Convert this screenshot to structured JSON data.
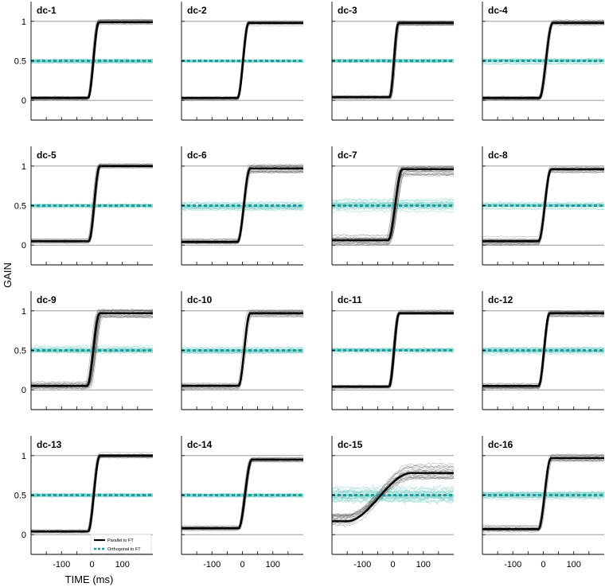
{
  "figure": {
    "ylabel": "GAIN",
    "xlabel": "TIME (ms)",
    "legend": {
      "parallel": "Parallel to FT",
      "orthogonal": "Orthogonal to FT"
    }
  },
  "chart_data": {
    "type": "line",
    "layout": "4x4 small multiples",
    "xlabel": "TIME (ms)",
    "ylabel": "GAIN",
    "xlim": [
      -200,
      200
    ],
    "ylim": [
      -0.25,
      1.25
    ],
    "xticks": [
      -100,
      0,
      100
    ],
    "yticks": [
      0,
      0.5,
      1
    ],
    "gridlines_y": [
      0,
      0.5,
      1
    ],
    "colors": {
      "parallel": "#000000",
      "orthogonal": "#1a9e9a",
      "orthogonal_light": "#7fd1cc",
      "grid": "#8c8c8c"
    },
    "legend": {
      "location": "bottom-right of panel dc-13",
      "entries": [
        "Parallel to FT",
        "Orthogonal to FT"
      ]
    },
    "panels": [
      {
        "title": "dc-1",
        "parallel_before": 0.03,
        "parallel_after": 0.99,
        "transition_ms": [
          -12,
          22
        ],
        "orthogonal_mean": 0.5,
        "spread": 0.05
      },
      {
        "title": "dc-2",
        "parallel_before": 0.03,
        "parallel_after": 0.98,
        "transition_ms": [
          -15,
          20
        ],
        "orthogonal_mean": 0.5,
        "spread": 0.04
      },
      {
        "title": "dc-3",
        "parallel_before": 0.04,
        "parallel_after": 0.98,
        "transition_ms": [
          -10,
          18
        ],
        "orthogonal_mean": 0.5,
        "spread": 0.05
      },
      {
        "title": "dc-4",
        "parallel_before": 0.03,
        "parallel_after": 0.98,
        "transition_ms": [
          -12,
          30
        ],
        "orthogonal_mean": 0.5,
        "spread": 0.06
      },
      {
        "title": "dc-5",
        "parallel_before": 0.05,
        "parallel_after": 1.0,
        "transition_ms": [
          -10,
          25
        ],
        "orthogonal_mean": 0.5,
        "spread": 0.05
      },
      {
        "title": "dc-6",
        "parallel_before": 0.04,
        "parallel_after": 0.97,
        "transition_ms": [
          -15,
          25
        ],
        "orthogonal_mean": 0.5,
        "spread": 0.08
      },
      {
        "title": "dc-7",
        "parallel_before": 0.06,
        "parallel_after": 0.96,
        "transition_ms": [
          -15,
          30
        ],
        "orthogonal_mean": 0.5,
        "spread": 0.12
      },
      {
        "title": "dc-8",
        "parallel_before": 0.05,
        "parallel_after": 0.96,
        "transition_ms": [
          -15,
          25
        ],
        "orthogonal_mean": 0.5,
        "spread": 0.08
      },
      {
        "title": "dc-9",
        "parallel_before": 0.05,
        "parallel_after": 0.97,
        "transition_ms": [
          -15,
          25
        ],
        "orthogonal_mean": 0.5,
        "spread": 0.1
      },
      {
        "title": "dc-10",
        "parallel_before": 0.05,
        "parallel_after": 0.97,
        "transition_ms": [
          -12,
          25
        ],
        "orthogonal_mean": 0.5,
        "spread": 0.07
      },
      {
        "title": "dc-11",
        "parallel_before": 0.04,
        "parallel_after": 0.97,
        "transition_ms": [
          -12,
          20
        ],
        "orthogonal_mean": 0.5,
        "spread": 0.05
      },
      {
        "title": "dc-12",
        "parallel_before": 0.05,
        "parallel_after": 0.97,
        "transition_ms": [
          -15,
          20
        ],
        "orthogonal_mean": 0.5,
        "spread": 0.08
      },
      {
        "title": "dc-13",
        "parallel_before": 0.04,
        "parallel_after": 1.0,
        "transition_ms": [
          -12,
          25
        ],
        "orthogonal_mean": 0.5,
        "spread": 0.05
      },
      {
        "title": "dc-14",
        "parallel_before": 0.08,
        "parallel_after": 0.95,
        "transition_ms": [
          -12,
          30
        ],
        "orthogonal_mean": 0.5,
        "spread": 0.05
      },
      {
        "title": "dc-15",
        "parallel_before": 0.17,
        "parallel_after": 0.78,
        "transition_ms": [
          -150,
          60
        ],
        "orthogonal_mean": 0.5,
        "spread": 0.18
      },
      {
        "title": "dc-16",
        "parallel_before": 0.07,
        "parallel_after": 0.97,
        "transition_ms": [
          -15,
          25
        ],
        "orthogonal_mean": 0.5,
        "spread": 0.08
      }
    ]
  }
}
